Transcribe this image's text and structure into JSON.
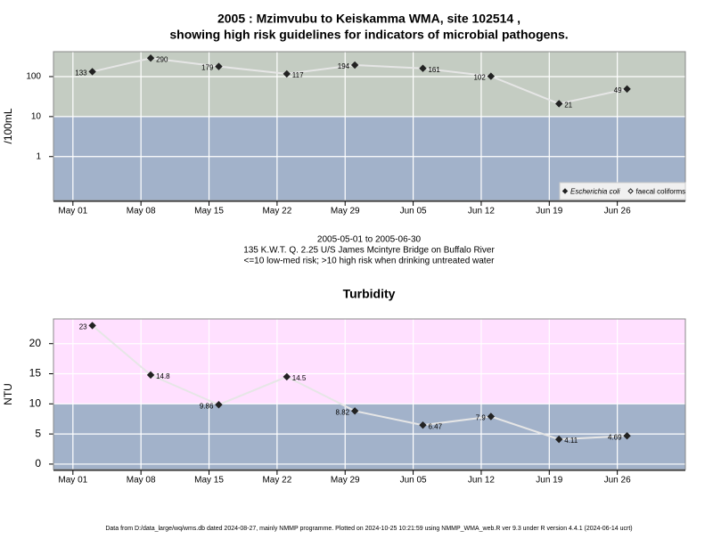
{
  "chart_data": [
    {
      "type": "line",
      "title": [
        "2005 : Mzimvubu to Keiskamma WMA, site 102514 ,",
        "showing high risk guidelines for indicators of microbial pathogens."
      ],
      "y_label": "/100mL",
      "log_scale": true,
      "x": [
        "05-03",
        "05-09",
        "05-16",
        "05-23",
        "05-30",
        "06-06",
        "06-13",
        "06-20",
        "06-27"
      ],
      "xlim": [
        "04-29",
        "07-03"
      ],
      "xticks": [
        {
          "value": "05-01",
          "label": "May 01"
        },
        {
          "value": "05-08",
          "label": "May 08"
        },
        {
          "value": "05-15",
          "label": "May 15"
        },
        {
          "value": "05-22",
          "label": "May 22"
        },
        {
          "value": "05-29",
          "label": "May 29"
        },
        {
          "value": "06-05",
          "label": "Jun 05"
        },
        {
          "value": "06-12",
          "label": "Jun 12"
        },
        {
          "value": "06-19",
          "label": "Jun 19"
        },
        {
          "value": "06-26",
          "label": "Jun 26"
        }
      ],
      "ylim": [
        0.08,
        420
      ],
      "yticks": [
        1,
        10,
        100
      ],
      "threshold": 10,
      "below_color": "#a2b2ca",
      "above_color": "#c4ccc2",
      "grid": true,
      "legend": "bottom-right",
      "series": [
        {
          "name": "Escherichia coli",
          "color": "#222222",
          "marker": "filled",
          "values": [
            133,
            290,
            179,
            117,
            194,
            161,
            102,
            21,
            49
          ]
        },
        {
          "name": "faecal coliforms",
          "color": "#222222",
          "marker": "hollow",
          "values": [
            null,
            null,
            null,
            null,
            null,
            null,
            null,
            null,
            null
          ]
        }
      ]
    },
    {
      "type": "line",
      "title": [
        "Turbidity"
      ],
      "y_label": "NTU",
      "log_scale": false,
      "x": [
        "05-03",
        "05-09",
        "05-16",
        "05-23",
        "05-30",
        "06-06",
        "06-13",
        "06-20",
        "06-27"
      ],
      "xlim": [
        "04-29",
        "07-03"
      ],
      "xticks": [
        {
          "value": "05-01",
          "label": "May 01"
        },
        {
          "value": "05-08",
          "label": "May 08"
        },
        {
          "value": "05-15",
          "label": "May 15"
        },
        {
          "value": "05-22",
          "label": "May 22"
        },
        {
          "value": "05-29",
          "label": "May 29"
        },
        {
          "value": "06-05",
          "label": "Jun 05"
        },
        {
          "value": "06-12",
          "label": "Jun 12"
        },
        {
          "value": "06-19",
          "label": "Jun 19"
        },
        {
          "value": "06-26",
          "label": "Jun 26"
        }
      ],
      "ylim": [
        -0.9,
        24.1
      ],
      "yticks": [
        0,
        5,
        10,
        15,
        20
      ],
      "threshold": 10,
      "below_color": "#a2b2ca",
      "above_color": "#ffe0ff",
      "grid": true,
      "series": [
        {
          "color": "#222222",
          "marker": "filled",
          "values": [
            23,
            14.8,
            9.86,
            14.5,
            8.82,
            6.47,
            7.9,
            4.11,
            4.69
          ]
        }
      ]
    }
  ],
  "caption": [
    "2005-05-01 to 2005-06-30",
    "135 K.W.T. Q. 2.25 U/S James Mcintyre Bridge on Buffalo River",
    "<=10 low-med risk; >10 high risk when drinking untreated water"
  ],
  "footer": "Data from D:/data_large/wq/wms.db dated 2024-08-27, mainly NMMP programme. Plotted on 2024-10-25 10:21:59 using NMMP_WMA_web.R ver 9.3 under R version 4.4.1 (2024-06-14 ucrt)"
}
